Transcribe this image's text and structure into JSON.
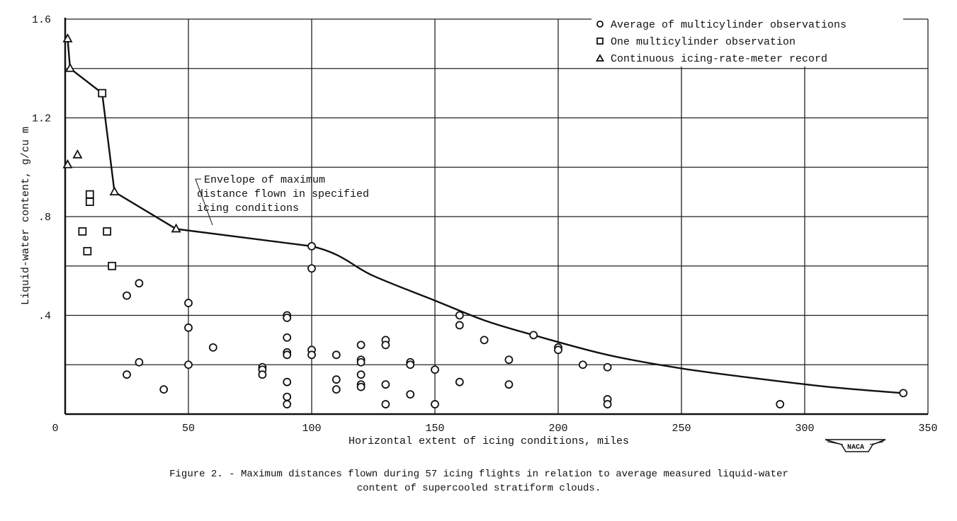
{
  "chart_data": {
    "type": "scatter",
    "xlabel": "Horizontal extent of icing conditions, miles",
    "ylabel": "Liquid-water content, g/cu m",
    "xlim": [
      0,
      350
    ],
    "ylim": [
      0,
      1.6
    ],
    "x_ticks": [
      0,
      50,
      100,
      150,
      200,
      250,
      300,
      350
    ],
    "x_tick_labels": [
      "0",
      "50",
      "100",
      "150",
      "200",
      "250",
      "300",
      "350"
    ],
    "y_ticks": [
      0.4,
      0.8,
      1.2,
      1.6
    ],
    "y_tick_labels": [
      ".4",
      ".8",
      "1.2",
      "1.6"
    ],
    "y_grid_step": 0.2,
    "grid": true,
    "legend_position": "top-right",
    "series": [
      {
        "name": "Average of multicylinder observations",
        "marker": "circle",
        "points": [
          [
            25,
            0.48
          ],
          [
            30,
            0.53
          ],
          [
            30,
            0.21
          ],
          [
            25,
            0.16
          ],
          [
            40,
            0.1
          ],
          [
            50,
            0.45
          ],
          [
            50,
            0.35
          ],
          [
            50,
            0.2
          ],
          [
            60,
            0.27
          ],
          [
            80,
            0.19
          ],
          [
            80,
            0.18
          ],
          [
            80,
            0.16
          ],
          [
            90,
            0.4
          ],
          [
            90,
            0.39
          ],
          [
            90,
            0.31
          ],
          [
            90,
            0.25
          ],
          [
            90,
            0.24
          ],
          [
            90,
            0.13
          ],
          [
            90,
            0.07
          ],
          [
            90,
            0.04
          ],
          [
            100,
            0.68
          ],
          [
            100,
            0.59
          ],
          [
            100,
            0.26
          ],
          [
            100,
            0.24
          ],
          [
            110,
            0.24
          ],
          [
            110,
            0.14
          ],
          [
            110,
            0.1
          ],
          [
            120,
            0.28
          ],
          [
            120,
            0.22
          ],
          [
            120,
            0.21
          ],
          [
            120,
            0.16
          ],
          [
            120,
            0.12
          ],
          [
            120,
            0.11
          ],
          [
            130,
            0.3
          ],
          [
            130,
            0.28
          ],
          [
            130,
            0.12
          ],
          [
            130,
            0.04
          ],
          [
            140,
            0.21
          ],
          [
            140,
            0.2
          ],
          [
            140,
            0.08
          ],
          [
            150,
            0.18
          ],
          [
            150,
            0.04
          ],
          [
            160,
            0.4
          ],
          [
            160,
            0.36
          ],
          [
            160,
            0.13
          ],
          [
            170,
            0.3
          ],
          [
            180,
            0.22
          ],
          [
            180,
            0.12
          ],
          [
            190,
            0.32
          ],
          [
            200,
            0.27
          ],
          [
            200,
            0.26
          ],
          [
            210,
            0.2
          ],
          [
            220,
            0.19
          ],
          [
            220,
            0.06
          ],
          [
            220,
            0.04
          ],
          [
            290,
            0.04
          ],
          [
            340,
            0.085
          ]
        ]
      },
      {
        "name": "One multicylinder observation",
        "marker": "square",
        "points": [
          [
            15,
            1.3
          ],
          [
            10,
            0.89
          ],
          [
            10,
            0.86
          ],
          [
            7,
            0.74
          ],
          [
            17,
            0.74
          ],
          [
            9,
            0.66
          ],
          [
            19,
            0.6
          ]
        ]
      },
      {
        "name": "Continuous icing-rate-meter record",
        "marker": "triangle",
        "points": [
          [
            1,
            1.52
          ],
          [
            2,
            1.4
          ],
          [
            1,
            1.01
          ],
          [
            5,
            1.05
          ],
          [
            20,
            0.9
          ],
          [
            45,
            0.75
          ]
        ]
      }
    ],
    "envelope": {
      "label": [
        "Envelope of maximum",
        "distance flown in specified",
        "icing conditions"
      ],
      "points": [
        [
          1,
          1.52
        ],
        [
          2,
          1.4
        ],
        [
          15,
          1.3
        ],
        [
          20,
          0.9
        ],
        [
          45,
          0.75
        ],
        [
          100,
          0.68
        ],
        [
          125,
          0.56
        ],
        [
          150,
          0.46
        ],
        [
          170,
          0.38
        ],
        [
          190,
          0.32
        ],
        [
          220,
          0.24
        ],
        [
          250,
          0.185
        ],
        [
          280,
          0.145
        ],
        [
          310,
          0.11
        ],
        [
          340,
          0.085
        ]
      ]
    }
  },
  "caption": [
    "Figure 2. - Maximum distances flown during 57 icing flights in relation to average measured liquid-water",
    "content of supercooled stratiform clouds."
  ],
  "logo": "NACA"
}
